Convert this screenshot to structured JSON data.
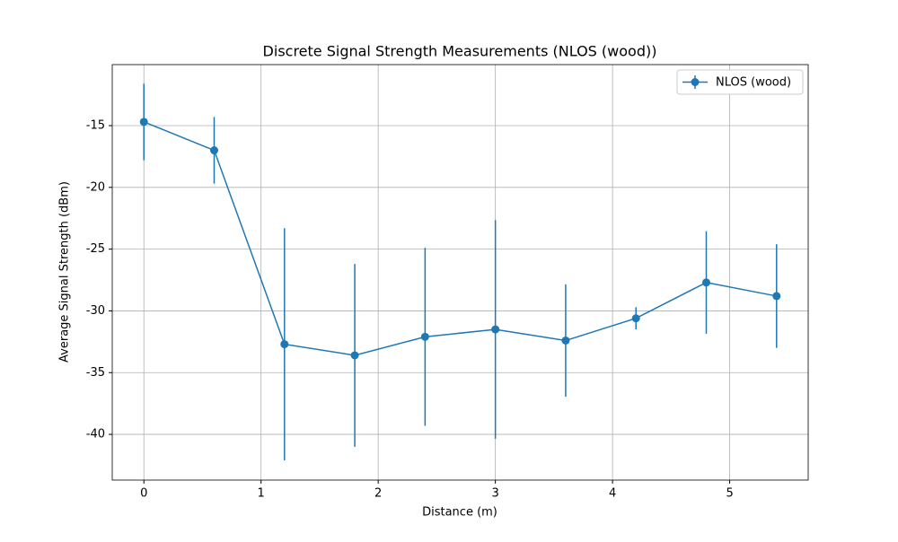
{
  "chart_data": {
    "type": "errorbar_line",
    "title": "Discrete Signal Strength Measurements (NLOS (wood))",
    "xlabel": "Distance (m)",
    "ylabel": "Average Signal Strength (dBm)",
    "x": [
      0,
      0.6,
      1.2,
      1.8,
      2.4,
      3.0,
      3.6,
      4.2,
      4.8,
      5.4
    ],
    "series": [
      {
        "name": "NLOS (wood)",
        "color": "#1f77b4",
        "values": [
          -14.7,
          -17.0,
          -32.7,
          -33.6,
          -32.1,
          -31.5,
          -32.4,
          -30.6,
          -27.7,
          -28.8
        ],
        "errors": [
          3.1,
          2.7,
          9.4,
          7.4,
          7.2,
          8.85,
          4.55,
          0.9,
          4.15,
          4.2
        ]
      }
    ],
    "xlim": [
      -0.27,
      5.67
    ],
    "xticks": [
      0,
      1,
      2,
      3,
      4,
      5
    ],
    "ylim": [
      -43.7,
      -10.06
    ],
    "yticks": [
      -40,
      -35,
      -30,
      -25,
      -20,
      -15
    ],
    "grid": true,
    "legend": "upper right"
  }
}
